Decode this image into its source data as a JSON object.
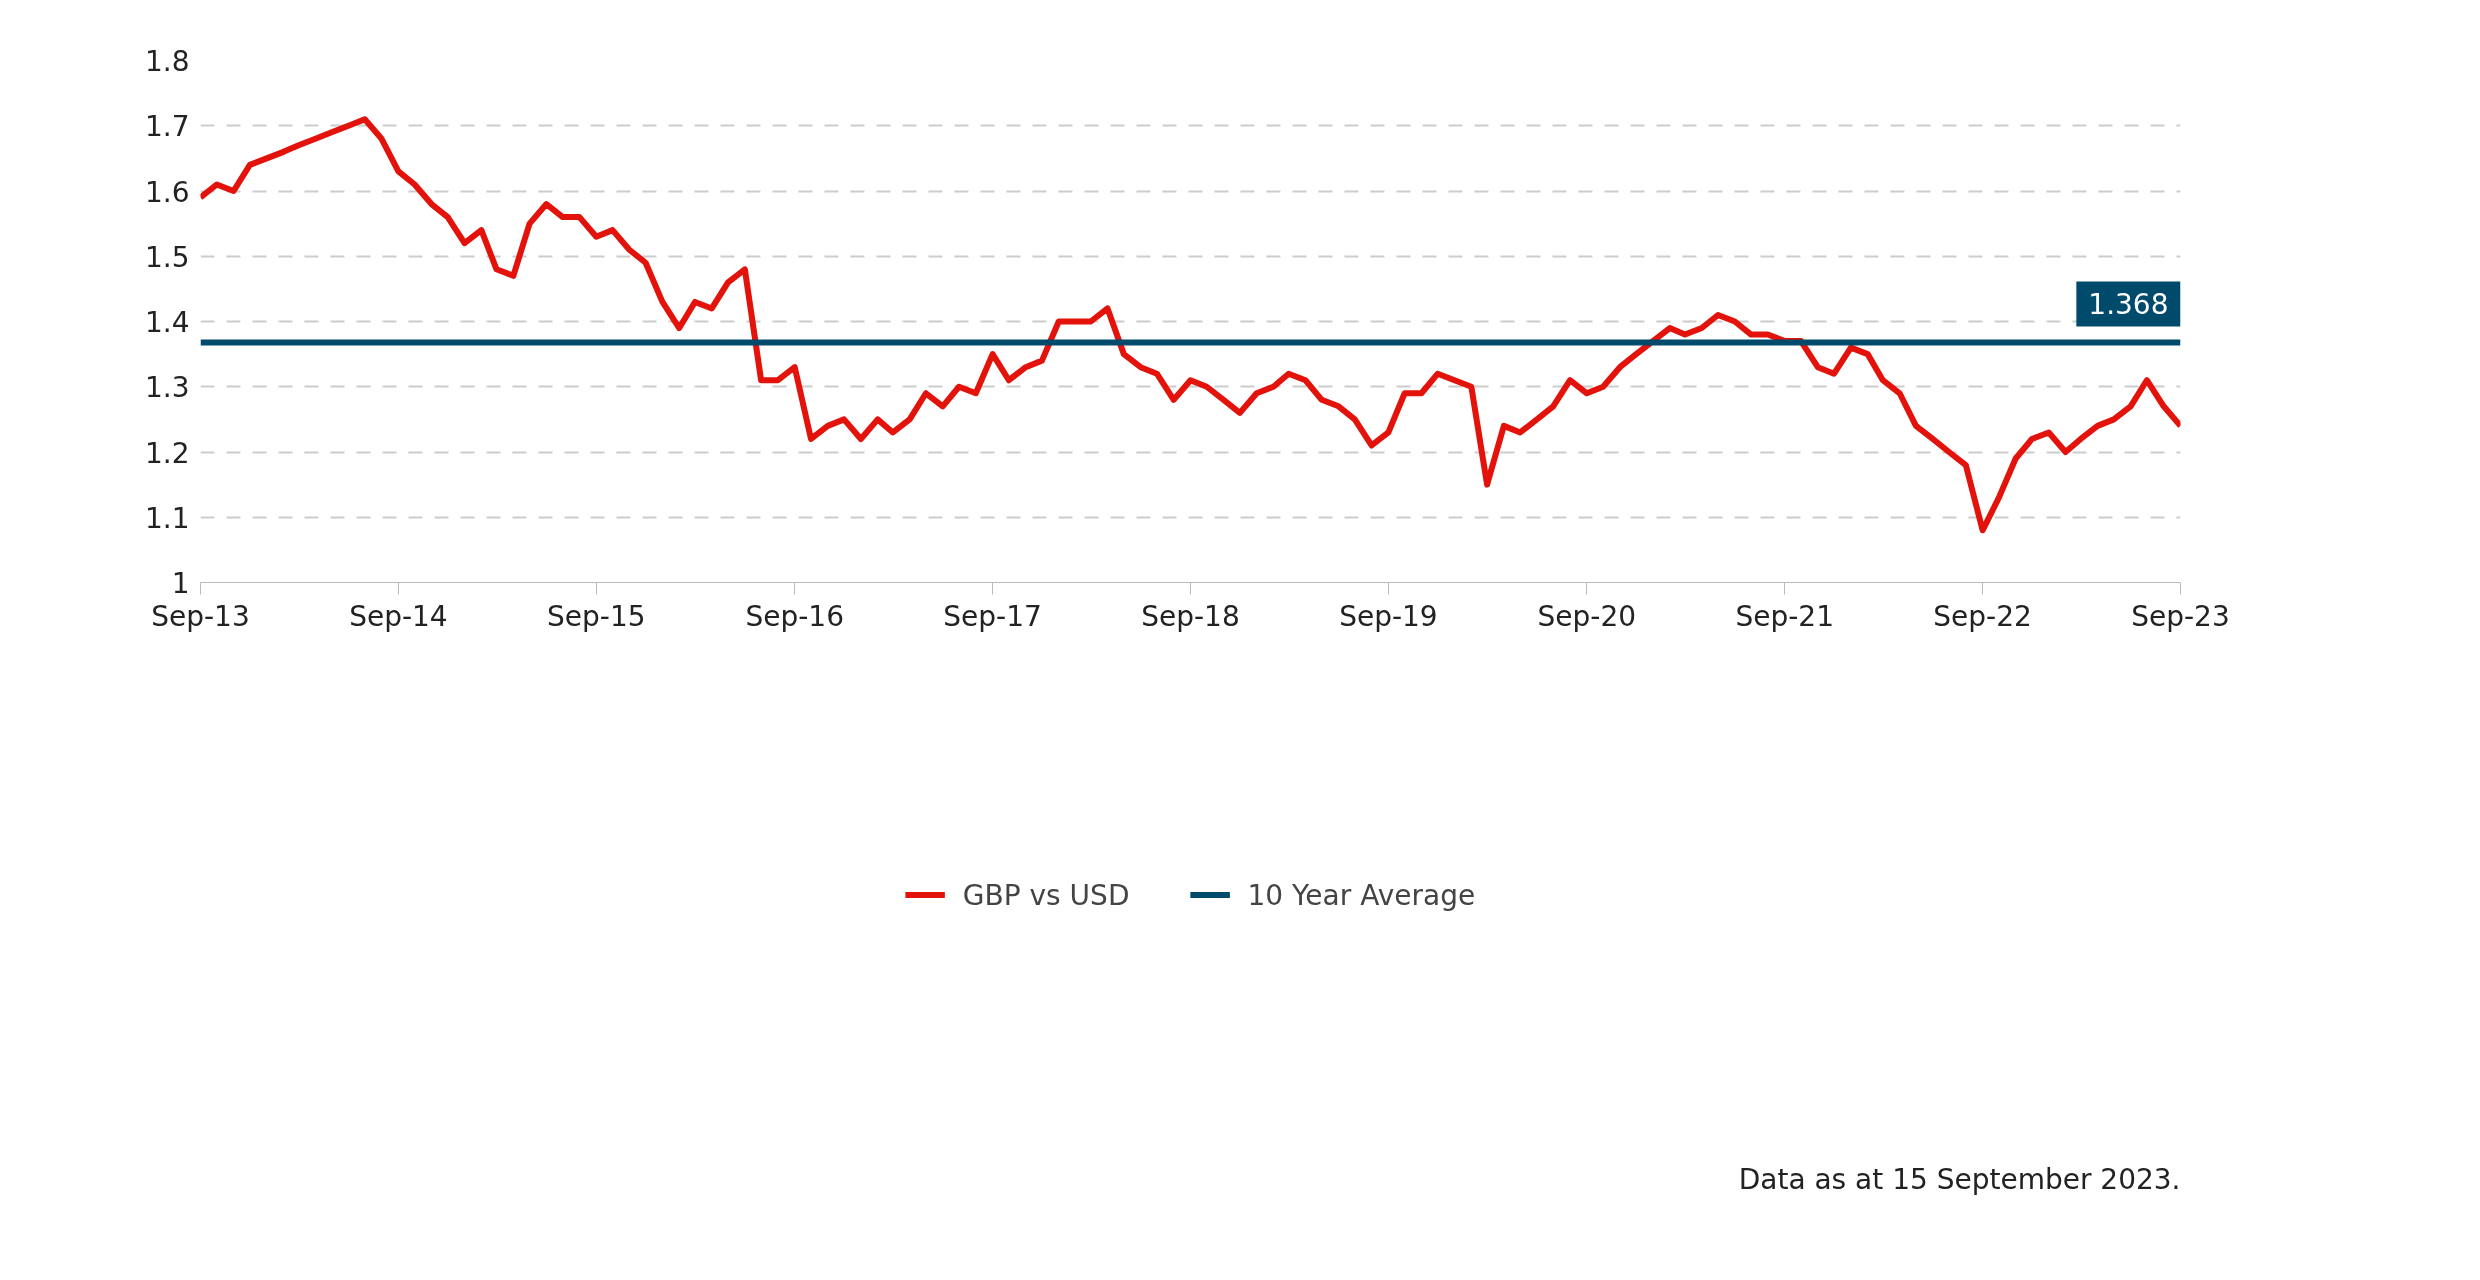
{
  "chart_data": {
    "type": "line",
    "xlim": [
      "2013-09-15",
      "2023-09-15"
    ],
    "xticks": [
      {
        "value": "2013-09-15",
        "label": "Sep-13"
      },
      {
        "value": "2014-09-15",
        "label": "Sep-14"
      },
      {
        "value": "2015-09-15",
        "label": "Sep-15"
      },
      {
        "value": "2016-09-15",
        "label": "Sep-16"
      },
      {
        "value": "2017-09-15",
        "label": "Sep-17"
      },
      {
        "value": "2018-09-15",
        "label": "Sep-18"
      },
      {
        "value": "2019-09-15",
        "label": "Sep-19"
      },
      {
        "value": "2020-09-15",
        "label": "Sep-20"
      },
      {
        "value": "2021-09-15",
        "label": "Sep-21"
      },
      {
        "value": "2022-09-15",
        "label": "Sep-22"
      },
      {
        "value": "2023-09-15",
        "label": "Sep-23"
      }
    ],
    "ylim": [
      1,
      1.8
    ],
    "yticks": [
      1,
      1.1,
      1.2,
      1.3,
      1.4,
      1.5,
      1.6,
      1.7,
      1.8
    ],
    "grid": "y",
    "legend": "bottom",
    "line_style": "solid",
    "series": [
      {
        "name": "GBP vs USD",
        "color": "#e3120b",
        "x": [
          "2013-09-15",
          "2013-10-15",
          "2013-11-15",
          "2013-12-15",
          "2014-01-15",
          "2014-02-15",
          "2014-03-15",
          "2014-04-15",
          "2014-05-15",
          "2014-06-15",
          "2014-07-15",
          "2014-08-15",
          "2014-09-15",
          "2014-10-15",
          "2014-11-15",
          "2014-12-15",
          "2015-01-15",
          "2015-02-15",
          "2015-03-15",
          "2015-04-15",
          "2015-05-15",
          "2015-06-15",
          "2015-07-15",
          "2015-08-15",
          "2015-09-15",
          "2015-10-15",
          "2015-11-15",
          "2015-12-15",
          "2016-01-15",
          "2016-02-15",
          "2016-03-15",
          "2016-04-15",
          "2016-05-15",
          "2016-06-15",
          "2016-07-15",
          "2016-08-15",
          "2016-09-15",
          "2016-10-15",
          "2016-11-15",
          "2016-12-15",
          "2017-01-15",
          "2017-02-15",
          "2017-03-15",
          "2017-04-15",
          "2017-05-15",
          "2017-06-15",
          "2017-07-15",
          "2017-08-15",
          "2017-09-15",
          "2017-10-15",
          "2017-11-15",
          "2017-12-15",
          "2018-01-15",
          "2018-02-15",
          "2018-03-15",
          "2018-04-15",
          "2018-05-15",
          "2018-06-15",
          "2018-07-15",
          "2018-08-15",
          "2018-09-15",
          "2018-10-15",
          "2018-11-15",
          "2018-12-15",
          "2019-01-15",
          "2019-02-15",
          "2019-03-15",
          "2019-04-15",
          "2019-05-15",
          "2019-06-15",
          "2019-07-15",
          "2019-08-15",
          "2019-09-15",
          "2019-10-15",
          "2019-11-15",
          "2019-12-15",
          "2020-01-15",
          "2020-02-15",
          "2020-03-15",
          "2020-04-15",
          "2020-05-15",
          "2020-06-15",
          "2020-07-15",
          "2020-08-15",
          "2020-09-15",
          "2020-10-15",
          "2020-11-15",
          "2020-12-15",
          "2021-01-15",
          "2021-02-15",
          "2021-03-15",
          "2021-04-15",
          "2021-05-15",
          "2021-06-15",
          "2021-07-15",
          "2021-08-15",
          "2021-09-15",
          "2021-10-15",
          "2021-11-15",
          "2021-12-15",
          "2022-01-15",
          "2022-02-15",
          "2022-03-15",
          "2022-04-15",
          "2022-05-15",
          "2022-06-15",
          "2022-07-15",
          "2022-08-15",
          "2022-09-15",
          "2022-10-15",
          "2022-11-15",
          "2022-12-15",
          "2023-01-15",
          "2023-02-15",
          "2023-03-15",
          "2023-04-15",
          "2023-05-15",
          "2023-06-15",
          "2023-07-15",
          "2023-08-15",
          "2023-09-15"
        ],
        "values": [
          1.59,
          1.61,
          1.6,
          1.64,
          1.65,
          1.66,
          1.67,
          1.68,
          1.69,
          1.7,
          1.71,
          1.68,
          1.63,
          1.61,
          1.58,
          1.56,
          1.52,
          1.54,
          1.48,
          1.47,
          1.55,
          1.58,
          1.56,
          1.56,
          1.53,
          1.54,
          1.51,
          1.49,
          1.43,
          1.39,
          1.43,
          1.42,
          1.46,
          1.48,
          1.31,
          1.31,
          1.33,
          1.22,
          1.24,
          1.25,
          1.22,
          1.25,
          1.23,
          1.25,
          1.29,
          1.27,
          1.3,
          1.29,
          1.35,
          1.31,
          1.33,
          1.34,
          1.4,
          1.4,
          1.4,
          1.42,
          1.35,
          1.33,
          1.32,
          1.28,
          1.31,
          1.3,
          1.28,
          1.26,
          1.29,
          1.3,
          1.32,
          1.31,
          1.28,
          1.27,
          1.25,
          1.21,
          1.23,
          1.29,
          1.29,
          1.32,
          1.31,
          1.3,
          1.15,
          1.24,
          1.23,
          1.25,
          1.27,
          1.31,
          1.29,
          1.3,
          1.33,
          1.35,
          1.37,
          1.39,
          1.38,
          1.39,
          1.41,
          1.4,
          1.38,
          1.38,
          1.37,
          1.37,
          1.33,
          1.32,
          1.36,
          1.35,
          1.31,
          1.29,
          1.24,
          1.22,
          1.2,
          1.18,
          1.08,
          1.13,
          1.19,
          1.22,
          1.23,
          1.2,
          1.22,
          1.24,
          1.25,
          1.27,
          1.31,
          1.27,
          1.24
        ]
      },
      {
        "name": "10 Year Average",
        "color": "#004a6b",
        "x": [
          "2013-09-15",
          "2023-09-15"
        ],
        "values": [
          1.368,
          1.368
        ],
        "value_labels": [
          null,
          "1.368"
        ]
      }
    ],
    "annotations": [
      "Data as at 15 September 2023."
    ]
  }
}
